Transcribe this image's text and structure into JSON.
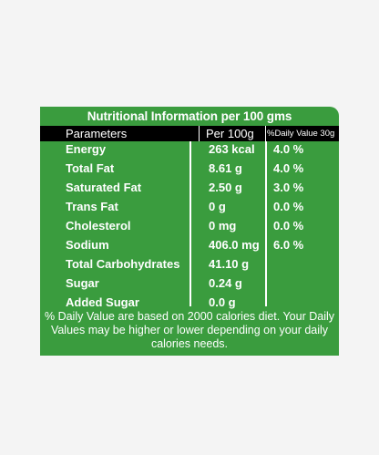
{
  "title": "Nutritional Information per 100 gms",
  "headers": {
    "parameters": "Parameters",
    "per100g": "Per 100g",
    "daily_value": "%Daily Value 30g"
  },
  "rows": [
    {
      "name": "Energy",
      "value": "263 kcal",
      "dv": "4.0 %"
    },
    {
      "name": "Total Fat",
      "value": "8.61 g",
      "dv": "4.0 %"
    },
    {
      "name": "Saturated Fat",
      "value": "2.50 g",
      "dv": "3.0 %"
    },
    {
      "name": "Trans Fat",
      "value": "0 g",
      "dv": "0.0 %"
    },
    {
      "name": "Cholesterol",
      "value": "0 mg",
      "dv": "0.0 %"
    },
    {
      "name": "Sodium",
      "value": "406.0 mg",
      "dv": "6.0 %"
    },
    {
      "name": "Total Carbohydrates",
      "value": "41.10 g",
      "dv": ""
    },
    {
      "name": "Sugar",
      "value": "0.24 g",
      "dv": ""
    },
    {
      "name": "Added Sugar",
      "value": "0.0 g",
      "dv": ""
    }
  ],
  "note": "% Daily Value are based on 2000 calories diet. Your Daily Values may be higher or lower depending on your daily calories needs.",
  "colors": {
    "panel": "#3a9c3e",
    "header_bar": "#000000",
    "text": "#ffffff"
  }
}
